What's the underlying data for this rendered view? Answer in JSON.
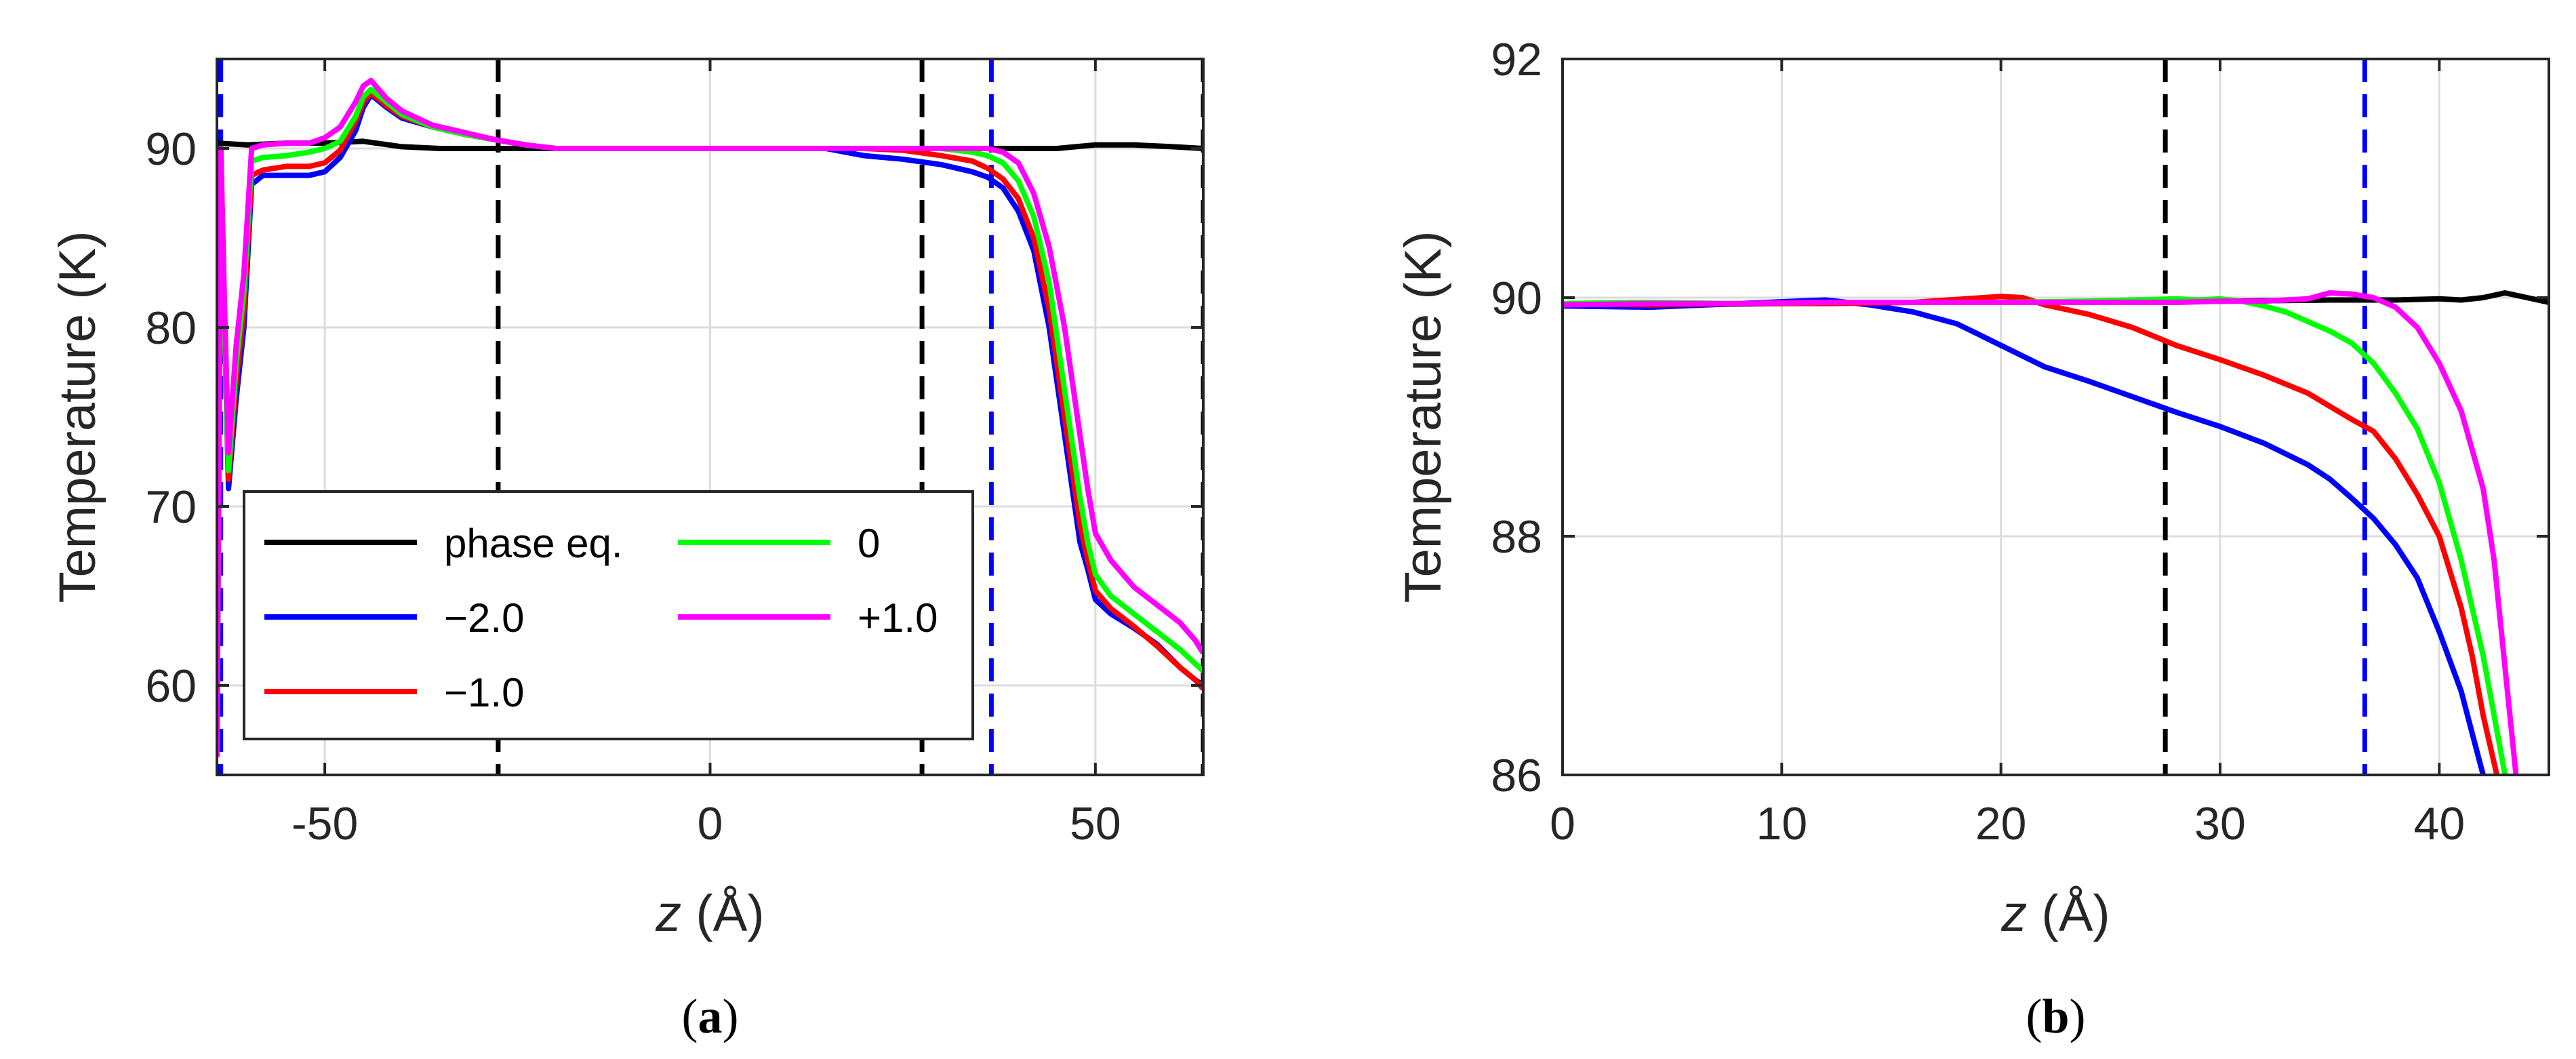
{
  "chart_data": [
    {
      "type": "line",
      "panel_label": "a",
      "xlabel_var": "z",
      "xlabel_unit": " (Å)",
      "ylabel": "Temperature (K)",
      "xlim": [
        -64,
        64
      ],
      "ylim": [
        55,
        95
      ],
      "xticks": [
        -50,
        0,
        50
      ],
      "xtick_labels": [
        "-50",
        "0",
        "50"
      ],
      "yticks": [
        60,
        70,
        80,
        90
      ],
      "ytick_labels": [
        "60",
        "70",
        "80",
        "90"
      ],
      "grid": true,
      "legend_position": "bottom-left",
      "vlines": [
        {
          "x": -64,
          "color": "#000000"
        },
        {
          "x": -27.5,
          "color": "#000000"
        },
        {
          "x": 27.5,
          "color": "#000000"
        },
        {
          "x": 64,
          "color": "#000000"
        },
        {
          "x": -63.5,
          "color": "#0000ff"
        },
        {
          "x": 36.5,
          "color": "#0000ff"
        }
      ],
      "series": [
        {
          "name": "phase eq.",
          "color": "#000000",
          "x": [
            -64,
            -60,
            -55,
            -50,
            -45,
            -40,
            -35,
            -30,
            -25,
            -20,
            -10,
            0,
            10,
            20,
            30,
            36,
            40,
            45,
            50,
            55,
            60,
            64
          ],
          "y": [
            90.3,
            90.2,
            90.3,
            90.3,
            90.4,
            90.1,
            90.0,
            90.0,
            90.0,
            90.0,
            90.0,
            90.0,
            90.0,
            90.0,
            90.0,
            90.0,
            90.0,
            90.0,
            90.2,
            90.2,
            90.1,
            90.0
          ]
        },
        {
          "name": "−2.0",
          "color": "#0000ff",
          "x": [
            -64,
            -63.5,
            -63,
            -62.5,
            -61.5,
            -60.5,
            -59.5,
            -58,
            -55,
            -52,
            -50,
            -48,
            -46,
            -45,
            -44,
            -42,
            -40,
            -36,
            -32,
            -28,
            -24,
            -20,
            -10,
            0,
            10,
            15,
            20,
            25,
            30,
            34,
            36,
            38,
            40,
            42,
            44,
            46,
            48,
            49,
            50,
            52,
            55,
            58,
            61,
            63,
            64
          ],
          "y": [
            56,
            90,
            80,
            71,
            76,
            80,
            88,
            88.5,
            88.5,
            88.5,
            88.7,
            89.5,
            91.0,
            92.3,
            93.0,
            92.3,
            91.7,
            91.2,
            90.8,
            90.5,
            90.2,
            90.0,
            90.0,
            90.0,
            90.0,
            90.0,
            89.6,
            89.4,
            89.1,
            88.7,
            88.4,
            87.8,
            86.5,
            84.3,
            80.0,
            74.0,
            68.0,
            66.5,
            64.8,
            64.0,
            63.2,
            62.3,
            61.0,
            60.3,
            60.0
          ]
        },
        {
          "name": "−1.0",
          "color": "#ff0000",
          "x": [
            -64,
            -63.5,
            -63,
            -62.5,
            -61.5,
            -60.5,
            -59.5,
            -58,
            -55,
            -52,
            -50,
            -48,
            -46,
            -45,
            -44,
            -42,
            -40,
            -36,
            -32,
            -28,
            -24,
            -20,
            -10,
            0,
            10,
            15,
            20,
            25,
            30,
            34,
            36,
            38,
            40,
            42,
            44,
            46,
            48,
            49,
            50,
            52,
            55,
            58,
            61,
            63,
            64
          ],
          "y": [
            56,
            90,
            80,
            71.5,
            77,
            81,
            88.5,
            88.8,
            89.0,
            89.0,
            89.2,
            89.9,
            91.5,
            92.6,
            93.1,
            92.4,
            91.8,
            91.2,
            90.8,
            90.5,
            90.2,
            90.0,
            90.0,
            90.0,
            90.0,
            90.0,
            90.0,
            89.9,
            89.6,
            89.3,
            88.9,
            88.3,
            87.2,
            85.0,
            81.0,
            75.0,
            69.0,
            67.0,
            65.3,
            64.3,
            63.3,
            62.2,
            61.0,
            60.3,
            59.8
          ]
        },
        {
          "name": "0",
          "color": "#00ff00",
          "x": [
            -64,
            -63.5,
            -63,
            -62.5,
            -61.5,
            -60.5,
            -59.5,
            -58,
            -55,
            -52,
            -50,
            -48,
            -46,
            -45,
            -44,
            -42,
            -40,
            -36,
            -32,
            -28,
            -24,
            -20,
            -10,
            0,
            10,
            15,
            20,
            25,
            30,
            34,
            36,
            38,
            40,
            42,
            44,
            46,
            48,
            49,
            50,
            52,
            55,
            58,
            61,
            63,
            64
          ],
          "y": [
            56,
            90,
            80,
            72,
            78,
            82,
            89.3,
            89.5,
            89.6,
            89.8,
            90.0,
            90.4,
            91.8,
            92.9,
            93.3,
            92.6,
            91.9,
            91.2,
            90.8,
            90.5,
            90.2,
            90.0,
            90.0,
            90.0,
            90.0,
            90.0,
            90.0,
            90.0,
            90.0,
            89.8,
            89.6,
            89.2,
            88.2,
            86.2,
            82.5,
            76.5,
            70.5,
            68.0,
            66.2,
            65.0,
            64.0,
            63.0,
            62.0,
            61.2,
            60.8
          ]
        },
        {
          "name": "+1.0",
          "color": "#ff00ff",
          "x": [
            -64,
            -63.5,
            -63,
            -62.5,
            -61.5,
            -60.5,
            -59.5,
            -58,
            -55,
            -52,
            -50,
            -48,
            -46,
            -45,
            -44,
            -42,
            -40,
            -36,
            -32,
            -28,
            -24,
            -20,
            -10,
            0,
            10,
            15,
            20,
            25,
            30,
            34,
            36,
            38,
            40,
            42,
            44,
            46,
            48,
            49,
            50,
            52,
            55,
            58,
            61,
            63,
            64
          ],
          "y": [
            56,
            90,
            81,
            73,
            79,
            83,
            90.0,
            90.2,
            90.3,
            90.3,
            90.6,
            91.2,
            92.6,
            93.5,
            93.8,
            92.8,
            92.1,
            91.3,
            90.9,
            90.5,
            90.2,
            90.0,
            90.0,
            90.0,
            90.0,
            90.0,
            90.0,
            90.0,
            90.0,
            90.0,
            90.0,
            89.8,
            89.2,
            87.5,
            84.5,
            80.0,
            74.0,
            71.0,
            68.5,
            67.0,
            65.5,
            64.5,
            63.5,
            62.5,
            61.8
          ]
        }
      ],
      "legend": [
        {
          "name": "phase eq.",
          "color": "#000000"
        },
        {
          "name": "−2.0",
          "color": "#0000ff"
        },
        {
          "name": "−1.0",
          "color": "#ff0000"
        },
        {
          "name": "0",
          "color": "#00ff00"
        },
        {
          "name": "+1.0",
          "color": "#ff00ff"
        }
      ]
    },
    {
      "type": "line",
      "panel_label": "b",
      "xlabel_var": "z",
      "xlabel_unit": " (Å)",
      "ylabel": "Temperature (K)",
      "xlim": [
        0,
        45
      ],
      "ylim": [
        86,
        92
      ],
      "xticks": [
        0,
        10,
        20,
        30,
        40
      ],
      "xtick_labels": [
        "0",
        "10",
        "20",
        "30",
        "40"
      ],
      "yticks": [
        86,
        88,
        90,
        92
      ],
      "ytick_labels": [
        "86",
        "88",
        "90",
        "92"
      ],
      "grid": true,
      "vlines": [
        {
          "x": 27.5,
          "color": "#000000"
        },
        {
          "x": 36.6,
          "color": "#0000ff"
        }
      ],
      "series": [
        {
          "name": "phase eq.",
          "color": "#000000",
          "x": [
            0,
            5,
            10,
            15,
            20,
            25,
            30,
            35,
            38,
            40,
            41,
            42,
            43,
            44,
            45
          ],
          "y": [
            89.93,
            89.94,
            89.95,
            89.96,
            89.96,
            89.97,
            89.97,
            89.98,
            89.98,
            89.99,
            89.98,
            90.0,
            90.04,
            90.0,
            89.96
          ]
        },
        {
          "name": "−2.0",
          "color": "#0000ff",
          "x": [
            0,
            4,
            8,
            12,
            14,
            16,
            18,
            20,
            22,
            24,
            26,
            28,
            30,
            32,
            34,
            35,
            36,
            37,
            38,
            39,
            40,
            41,
            41.5,
            42,
            42.5
          ],
          "y": [
            89.93,
            89.92,
            89.95,
            89.98,
            89.94,
            89.88,
            89.78,
            89.6,
            89.42,
            89.3,
            89.17,
            89.04,
            88.92,
            88.78,
            88.6,
            88.48,
            88.32,
            88.15,
            87.93,
            87.65,
            87.2,
            86.7,
            86.35,
            86.0,
            85.6
          ]
        },
        {
          "name": "−1.0",
          "color": "#ff0000",
          "x": [
            0,
            4,
            8,
            12,
            16,
            20,
            21,
            22,
            24,
            26,
            28,
            30,
            32,
            34,
            36,
            37,
            38,
            39,
            40,
            41,
            41.5,
            42,
            42.5,
            43
          ],
          "y": [
            89.95,
            89.94,
            89.95,
            89.95,
            89.96,
            90.01,
            90.0,
            89.94,
            89.86,
            89.75,
            89.6,
            89.48,
            89.35,
            89.2,
            88.98,
            88.88,
            88.65,
            88.35,
            88.0,
            87.4,
            87.0,
            86.5,
            86.1,
            85.7
          ]
        },
        {
          "name": "0",
          "color": "#00ff00",
          "x": [
            0,
            4,
            8,
            12,
            16,
            20,
            24,
            28,
            29,
            30,
            31,
            32,
            33,
            34,
            35,
            36,
            37,
            38,
            39,
            40,
            41,
            42,
            42.5,
            43
          ],
          "y": [
            89.95,
            89.96,
            89.95,
            89.96,
            89.96,
            89.96,
            89.97,
            89.99,
            89.98,
            89.99,
            89.97,
            89.93,
            89.88,
            89.8,
            89.72,
            89.62,
            89.45,
            89.2,
            88.9,
            88.45,
            87.8,
            87.0,
            86.5,
            86.0
          ]
        },
        {
          "name": "+1.0",
          "color": "#ff00ff",
          "x": [
            0,
            4,
            8,
            12,
            16,
            20,
            24,
            28,
            30,
            32,
            34,
            35,
            36,
            37,
            38,
            39,
            40,
            41,
            42,
            42.5,
            43,
            43.5
          ],
          "y": [
            89.94,
            89.95,
            89.95,
            89.96,
            89.96,
            89.96,
            89.96,
            89.96,
            89.97,
            89.97,
            89.99,
            90.04,
            90.03,
            90.0,
            89.92,
            89.75,
            89.45,
            89.05,
            88.4,
            87.8,
            86.9,
            86.0
          ]
        }
      ]
    }
  ]
}
